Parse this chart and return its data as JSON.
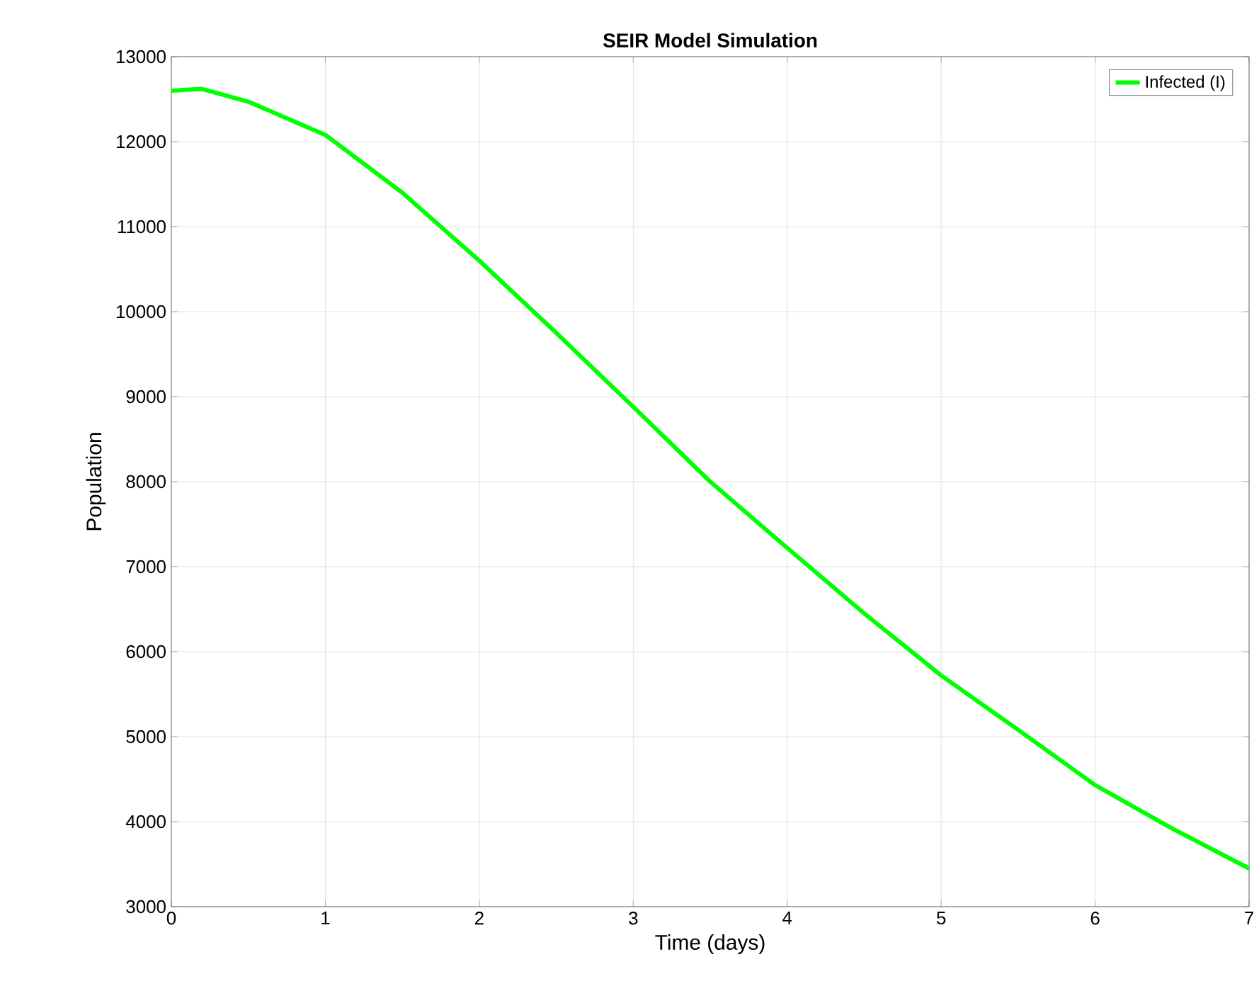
{
  "chart_data": {
    "type": "line",
    "title": "SEIR Model Simulation",
    "xlabel": "Time (days)",
    "ylabel": "Population",
    "x": [
      0,
      0.2,
      0.5,
      1,
      1.5,
      2,
      2.5,
      3,
      3.5,
      4,
      4.5,
      5,
      5.5,
      6,
      6.5,
      7
    ],
    "series": [
      {
        "name": "Infected (I)",
        "color": "#00ff00",
        "values": [
          12600,
          12620,
          12470,
          12080,
          11400,
          10600,
          9750,
          8880,
          8000,
          7220,
          6450,
          5720,
          5080,
          4430,
          3920,
          3450
        ]
      }
    ],
    "xlim": [
      0,
      7
    ],
    "ylim": [
      3000,
      13000
    ],
    "xticks": [
      0,
      1,
      2,
      3,
      4,
      5,
      6,
      7
    ],
    "yticks": [
      3000,
      4000,
      5000,
      6000,
      7000,
      8000,
      9000,
      10000,
      11000,
      12000,
      13000
    ],
    "grid": true,
    "legend": "top right",
    "marker": "none",
    "line_style": "solid"
  }
}
